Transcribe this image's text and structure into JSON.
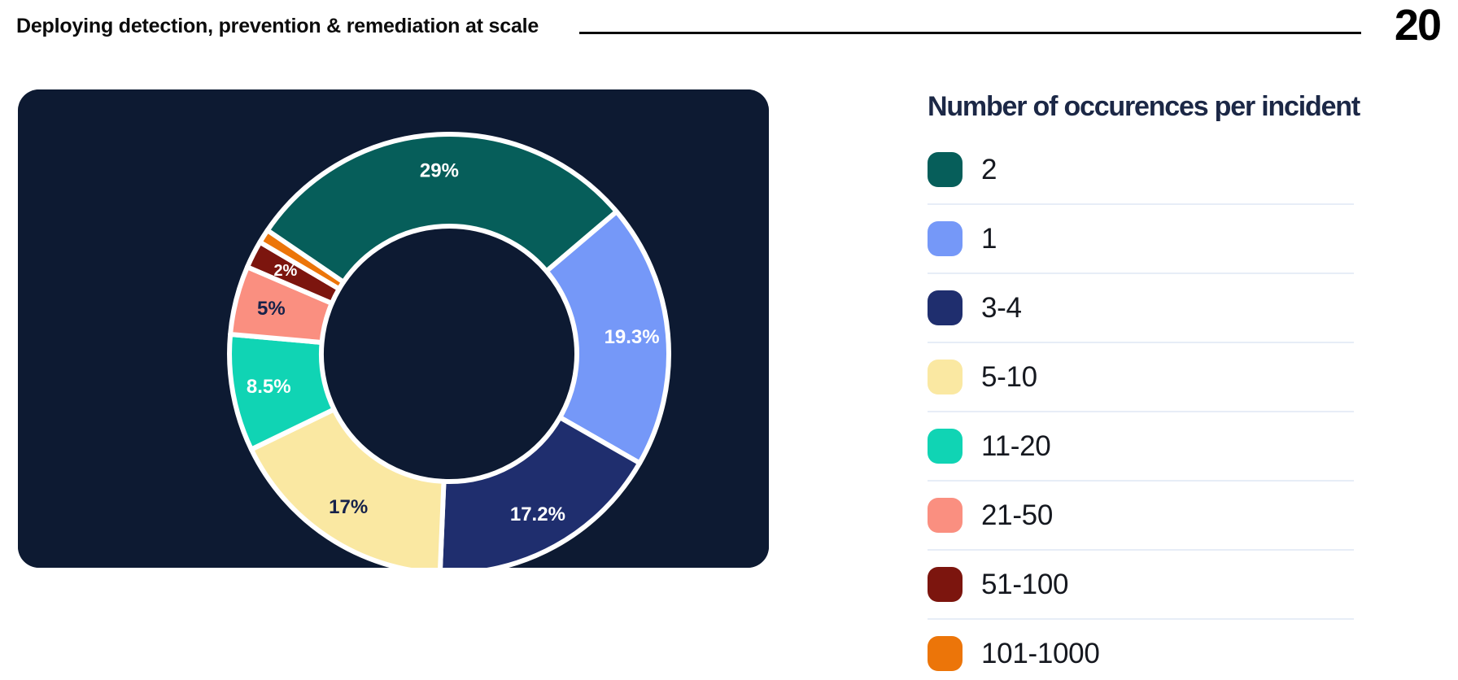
{
  "header": {
    "title": "Deploying detection, prevention & remediation at scale",
    "page_number": "20"
  },
  "chart_data": {
    "type": "pie",
    "subtype": "donut",
    "title": "Number of occurences per incident",
    "legend_position": "right",
    "background": "#0D1A32",
    "rotation_deg": -55.8,
    "donut_hole_ratio": 0.58,
    "slices": [
      {
        "label": "2",
        "value": 29,
        "display": "29%",
        "color": "#065E5A",
        "text_color": "#FFFFFF"
      },
      {
        "label": "1",
        "value": 19.3,
        "display": "19.3%",
        "color": "#7598F8",
        "text_color": "#FFFFFF"
      },
      {
        "label": "3-4",
        "value": 17.2,
        "display": "17.2%",
        "color": "#1F2E6E",
        "text_color": "#FFFFFF"
      },
      {
        "label": "5-10",
        "value": 17,
        "display": "17%",
        "color": "#FAE8A2",
        "text_color": "#16224A"
      },
      {
        "label": "11-20",
        "value": 8.5,
        "display": "8.5%",
        "color": "#10D4B4",
        "text_color": "#FFFFFF"
      },
      {
        "label": "21-50",
        "value": 5,
        "display": "5%",
        "color": "#FA8F80",
        "text_color": "#16224A"
      },
      {
        "label": "51-100",
        "value": 2,
        "display": "2%",
        "color": "#7C150E",
        "text_color": "#FFFFFF"
      },
      {
        "label": "101-1000",
        "value": 1,
        "display": "",
        "color": "#EC7509",
        "text_color": "#FFFFFF"
      }
    ]
  }
}
